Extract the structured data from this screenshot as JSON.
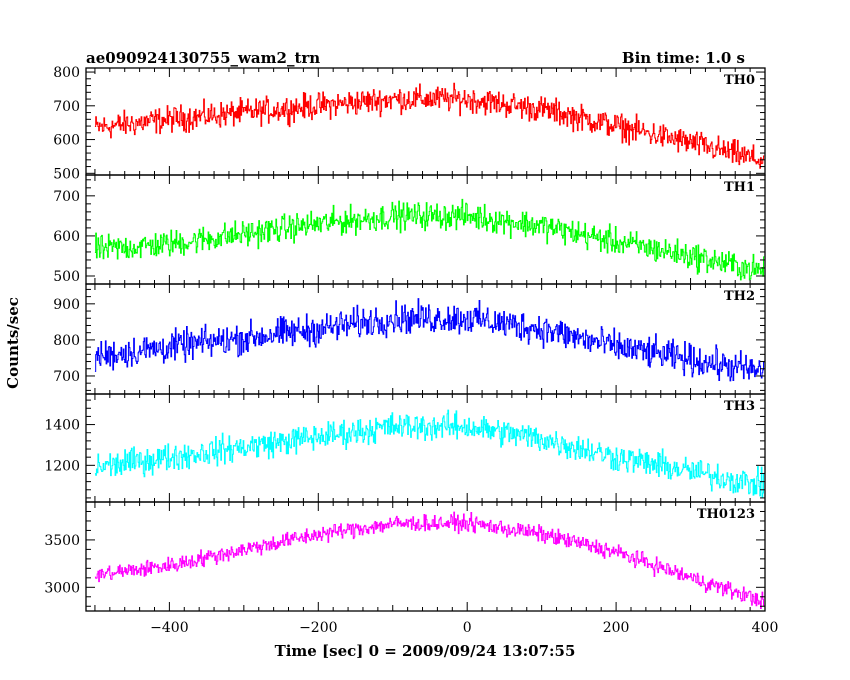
{
  "header": {
    "left_title": "ae090924130755_wam2_trn",
    "right_title": "Bin time: 1.0 s"
  },
  "axes": {
    "xlabel": "Time [sec] 0 = 2009/09/24 13:07:55",
    "ylabel": "Counts/sec"
  },
  "colors": {
    "TH0": "#ff0000",
    "TH1": "#00ff00",
    "TH2": "#0000ff",
    "TH3": "#00ffff",
    "TH0123": "#ff00ff",
    "axes": "#000000"
  },
  "chart_data": {
    "type": "line",
    "stacked_panels": true,
    "shared_x": {
      "range": [
        -512,
        400
      ],
      "ticks": [
        -400,
        -200,
        0,
        200,
        400
      ],
      "tick_labels": [
        "−400",
        "−200",
        "0",
        "200",
        "400"
      ],
      "bin_seconds": 1.0
    },
    "panels": [
      {
        "name": "TH0",
        "ylim": [
          495,
          812
        ],
        "yticks": [
          500,
          600,
          700,
          800
        ],
        "profile": {
          "x": [
            -500,
            -400,
            -200,
            -100,
            0,
            100,
            200,
            300,
            400
          ],
          "y": [
            635,
            660,
            700,
            720,
            720,
            690,
            640,
            590,
            535
          ]
        },
        "noise_amplitude": 40
      },
      {
        "name": "TH1",
        "ylim": [
          480,
          752
        ],
        "yticks": [
          500,
          600,
          700
        ],
        "profile": {
          "x": [
            -500,
            -400,
            -200,
            -100,
            0,
            100,
            200,
            300,
            400
          ],
          "y": [
            565,
            580,
            630,
            650,
            650,
            625,
            585,
            550,
            510
          ]
        },
        "noise_amplitude": 35
      },
      {
        "name": "TH2",
        "ylim": [
          650,
          955
        ],
        "yticks": [
          700,
          800,
          900
        ],
        "profile": {
          "x": [
            -500,
            -400,
            -200,
            -100,
            0,
            100,
            200,
            300,
            400
          ],
          "y": [
            755,
            780,
            830,
            860,
            860,
            830,
            780,
            745,
            710
          ]
        },
        "noise_amplitude": 45
      },
      {
        "name": "TH3",
        "ylim": [
          1020,
          1550
        ],
        "yticks": [
          1200,
          1400
        ],
        "profile": {
          "x": [
            -500,
            -400,
            -200,
            -100,
            0,
            100,
            200,
            300,
            400
          ],
          "y": [
            1190,
            1240,
            1340,
            1390,
            1390,
            1330,
            1240,
            1170,
            1100
          ]
        },
        "noise_amplitude": 70
      },
      {
        "name": "TH0123",
        "ylim": [
          2750,
          3900
        ],
        "yticks": [
          3000,
          3500
        ],
        "profile": {
          "x": [
            -500,
            -400,
            -300,
            -200,
            -100,
            0,
            100,
            200,
            300,
            400
          ],
          "y": [
            3130,
            3230,
            3400,
            3560,
            3670,
            3680,
            3560,
            3370,
            3100,
            2850
          ]
        },
        "noise_amplitude": 90
      }
    ],
    "ylabel": "Counts/sec",
    "xlabel": "Time [sec] 0 = 2009/09/24 13:07:55",
    "grid": false
  }
}
